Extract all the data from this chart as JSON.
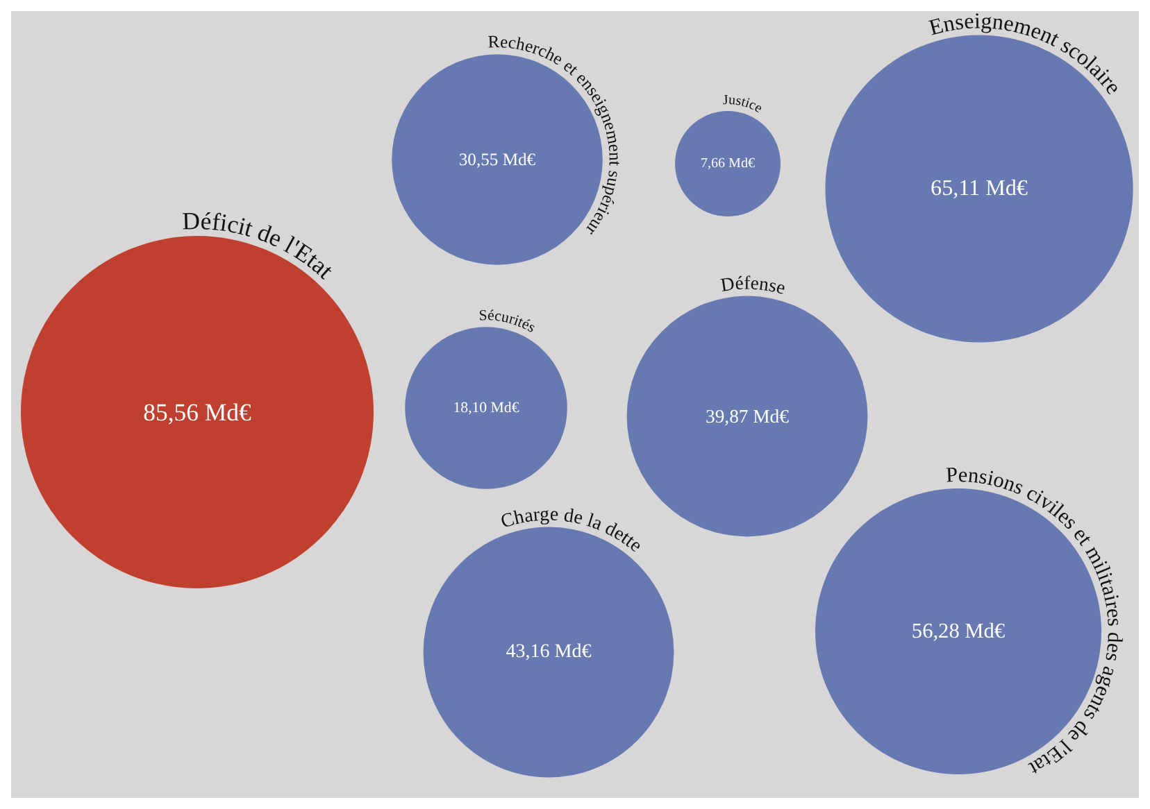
{
  "chart_data": {
    "type": "other",
    "categories": [
      "Déficit de l'Etat",
      "Recherche et enseignement supérieur",
      "Justice",
      "Enseignement scolaire",
      "Sécurités",
      "Défense",
      "Charge de la dette",
      "Pensions civiles et militaires des agents de l'Etat"
    ],
    "values": [
      85.56,
      30.55,
      7.66,
      65.11,
      18.1,
      39.87,
      43.16,
      56.28
    ],
    "value_labels": [
      "85,56 Md€",
      "30,55 Md€",
      "7,66 Md€",
      "65,11 Md€",
      "18,10 Md€",
      "39,87 Md€",
      "43,16 Md€",
      "56,28 Md€"
    ],
    "colors": [
      "#bf402f",
      "#6679b0",
      "#6679b0",
      "#6679b0",
      "#6679b0",
      "#6679b0",
      "#6679b0",
      "#6679b0"
    ]
  }
}
